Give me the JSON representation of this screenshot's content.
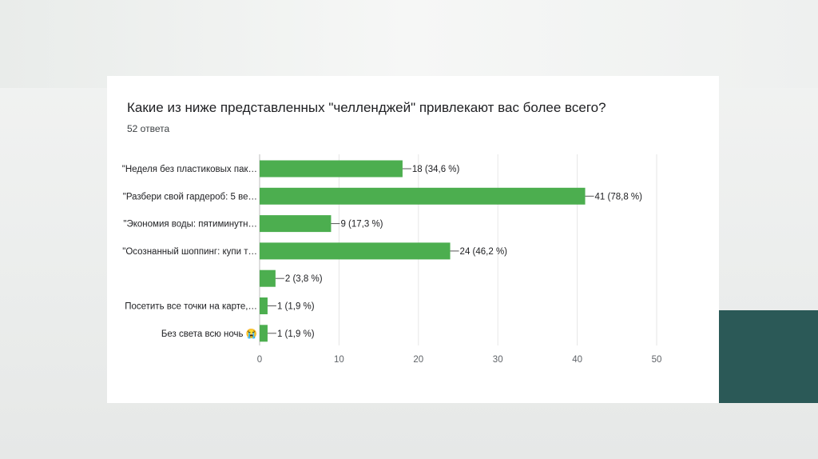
{
  "page": {
    "question": "Какие из ниже представленных \"челленджей\" привлекают вас более всего?",
    "responses": "52 ответа"
  },
  "colors": {
    "bar": "#4cae4f",
    "grid": "#e6e6e6",
    "accent_block": "#2b5957"
  },
  "chart_data": {
    "type": "bar",
    "orientation": "horizontal",
    "categories": [
      "\"Неделя без пластиковых пак…",
      "\"Разбери свой гардероб: 5 ве…",
      "\"Экономия воды: пятиминутн…",
      "\"Осознанный шоппинг: купи т…",
      "",
      "Посетить все точки на карте,…",
      "Без света всю ночь 😭"
    ],
    "values": [
      18,
      41,
      9,
      24,
      2,
      1,
      1
    ],
    "value_labels": [
      "18 (34,6 %)",
      "41 (78,8 %)",
      "9 (17,3 %)",
      "24 (46,2 %)",
      "2 (3,8 %)",
      "1 (1,9 %)",
      "1 (1,9 %)"
    ],
    "xlim": [
      0,
      50
    ],
    "xticks": [
      0,
      10,
      20,
      30,
      40,
      50
    ],
    "grid": true,
    "legend": "none"
  }
}
